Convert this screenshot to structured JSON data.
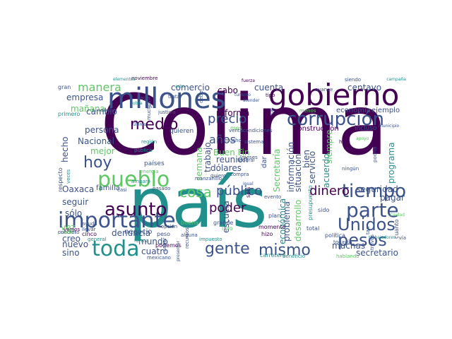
{
  "palette": {
    "dark": "#440154",
    "indigo": "#3b528b",
    "teal": "#21908d",
    "green": "#5dc863",
    "yellow": "#c9d42b"
  },
  "cloud": {
    "large": {
      "colima": "Colima",
      "pais": "país",
      "gobierno": "gobierno",
      "millones": "millones",
      "corrupcion": "corrupción",
      "pueblo": "pueblo",
      "importante": "importante",
      "toda": "toda",
      "asunto": "asunto",
      "parte": "parte",
      "unidos": "Unidos",
      "pesos": "pesos",
      "tiempo": "tiempo",
      "mismo": "mismo",
      "gente": "gente",
      "medio": "medio",
      "hoy": "hoy",
      "cosa": "cosa",
      "publico": "público",
      "dinero": "dinero",
      "poder": "poder",
      "precio": "precio"
    },
    "medium": {
      "manera": "manera",
      "empresa": "empresa",
      "comercio": "comercio",
      "cuenta": "cuenta",
      "centavo": "centavo",
      "cabo": "cabo",
      "anos": "años",
      "reforma": "reforma",
      "trabajo": "trabajo",
      "buen_fin": "Buen Fin",
      "semana": "semana",
      "manana": "mañana",
      "persona": "persona",
      "nacional": "Nacional",
      "mejor": "mejor",
      "hecho": "hecho",
      "oaxaca": "Oaxaca",
      "familia": "familia",
      "seguir": "seguir",
      "solo": "sólo",
      "denuncia": "denuncia",
      "mundo": "mundo",
      "creo": "creo",
      "nuevo": "nuevo",
      "sino": "sino",
      "cuatro": "cuatro",
      "secretaria": "Secretaría",
      "economica": "económica",
      "informacion": "información",
      "situacion": "situación",
      "bien": "bien",
      "problema": "problema",
      "desarrollo": "desarrollo",
      "servicio": "servicio",
      "acuerdo": "acuerdo",
      "siempre": "siempre",
      "programa": "programa",
      "seguridad": "seguridad",
      "pagar": "pagar",
      "muchas": "muchas",
      "secretario": "secretario",
      "dolares": "dólares",
      "reunion": "reunión",
      "escuela": "escuela",
      "economia": "economía",
      "ejemplo": "ejemplo",
      "vez": "vez",
      "cambio": "cambio",
      "negocio": "negocio"
    },
    "small": {
      "construccion": "construcción",
      "incluso": "incluso",
      "hora": "hora",
      "mes": "mes",
      "dar": "dar",
      "seis": "seis",
      "quieren": "quieren",
      "paises": "países",
      "publica": "pública",
      "energia": "energía",
      "region": "región",
      "sistema": "sistema",
      "venta": "venta",
      "condiciones": "condiciones",
      "federal": "federal",
      "momento": "momento",
      "plan": "plan",
      "total": "total",
      "hizo": "hizo",
      "sido": "sido",
      "politica": "política",
      "podemos": "podemos",
      "carretera": "carretera",
      "impuesto": "impuesto",
      "mexicano": "mexicano",
      "general": "general",
      "cinco": "cinco",
      "pueden": "pueden",
      "concreto": "concreto",
      "pasado": "pasado",
      "justicia": "justicia",
      "sector": "sector",
      "primero": "primero",
      "gran": "gran",
      "noviembre": "noviembre",
      "tipo": "tipo",
      "avance": "avance",
      "siendo": "siendo",
      "campana": "campaña",
      "municipio": "municipio",
      "apoyo": "apoyo",
      "podria": "podría",
      "ningun": "ningún",
      "ciudad": "Ciudad",
      "cuanto": "cuanto",
      "via": "vía",
      "trabajadores": "trabajadores",
      "hablando": "hablando",
      "grande": "grande",
      "meses": "meses",
      "igual": "igual",
      "evento": "evento",
      "atender": "atender",
      "turismo": "turismo",
      "respecto": "respecto",
      "fuerza": "fuerza",
      "menos": "menos",
      "muchos": "muchos",
      "hacia": "hacia",
      "ultimo": "último",
      "trata": "trata",
      "sat": "SAT",
      "alguna": "alguna",
      "buena": "buena",
      "litro": "litro",
      "fiscal": "fiscal",
      "opcion": "opción",
      "veces": "veces",
      "ayuda": "ayuda",
      "llevar": "llevar",
      "amparo": "amparo",
      "vemos": "vemos",
      "recursos": "recursos",
      "peso": "peso",
      "casi": "casi",
      "quiero": "quiero",
      "manzanillo": "manzanillo",
      "debe": "debe",
      "compra": "compra",
      "tal": "tal",
      "tan": "tan",
      "presupuesto": "presupuesto",
      "beneficio": "beneficio",
      "traves": "través",
      "todavia": "todavía",
      "saber": "saber",
      "presentar": "presentar",
      "forma": "forma",
      "obra": "obra",
      "acto": "acto",
      "mucho": "mucho",
      "elementos": "elementos"
    }
  }
}
